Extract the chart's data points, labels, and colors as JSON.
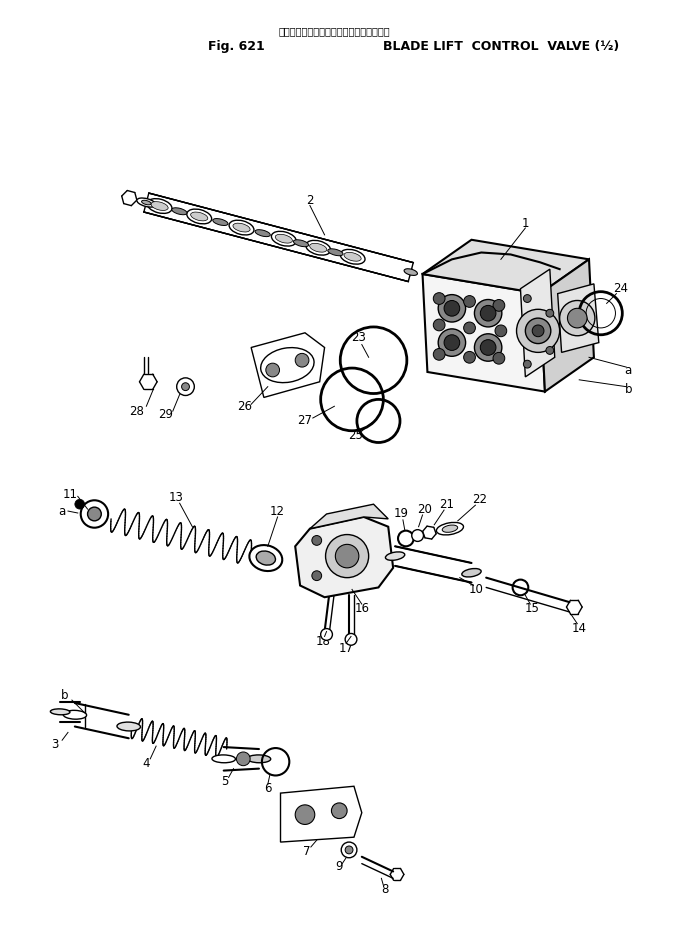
{
  "title_japanese": "ブレード　リフト　コントロール　バルブ",
  "title_fig": "Fig. 621",
  "title_main": "BLADE LIFT  CONTROL  VALVE (½)",
  "background_color": "#ffffff",
  "figsize": [
    6.8,
    9.32
  ],
  "dpi": 100
}
